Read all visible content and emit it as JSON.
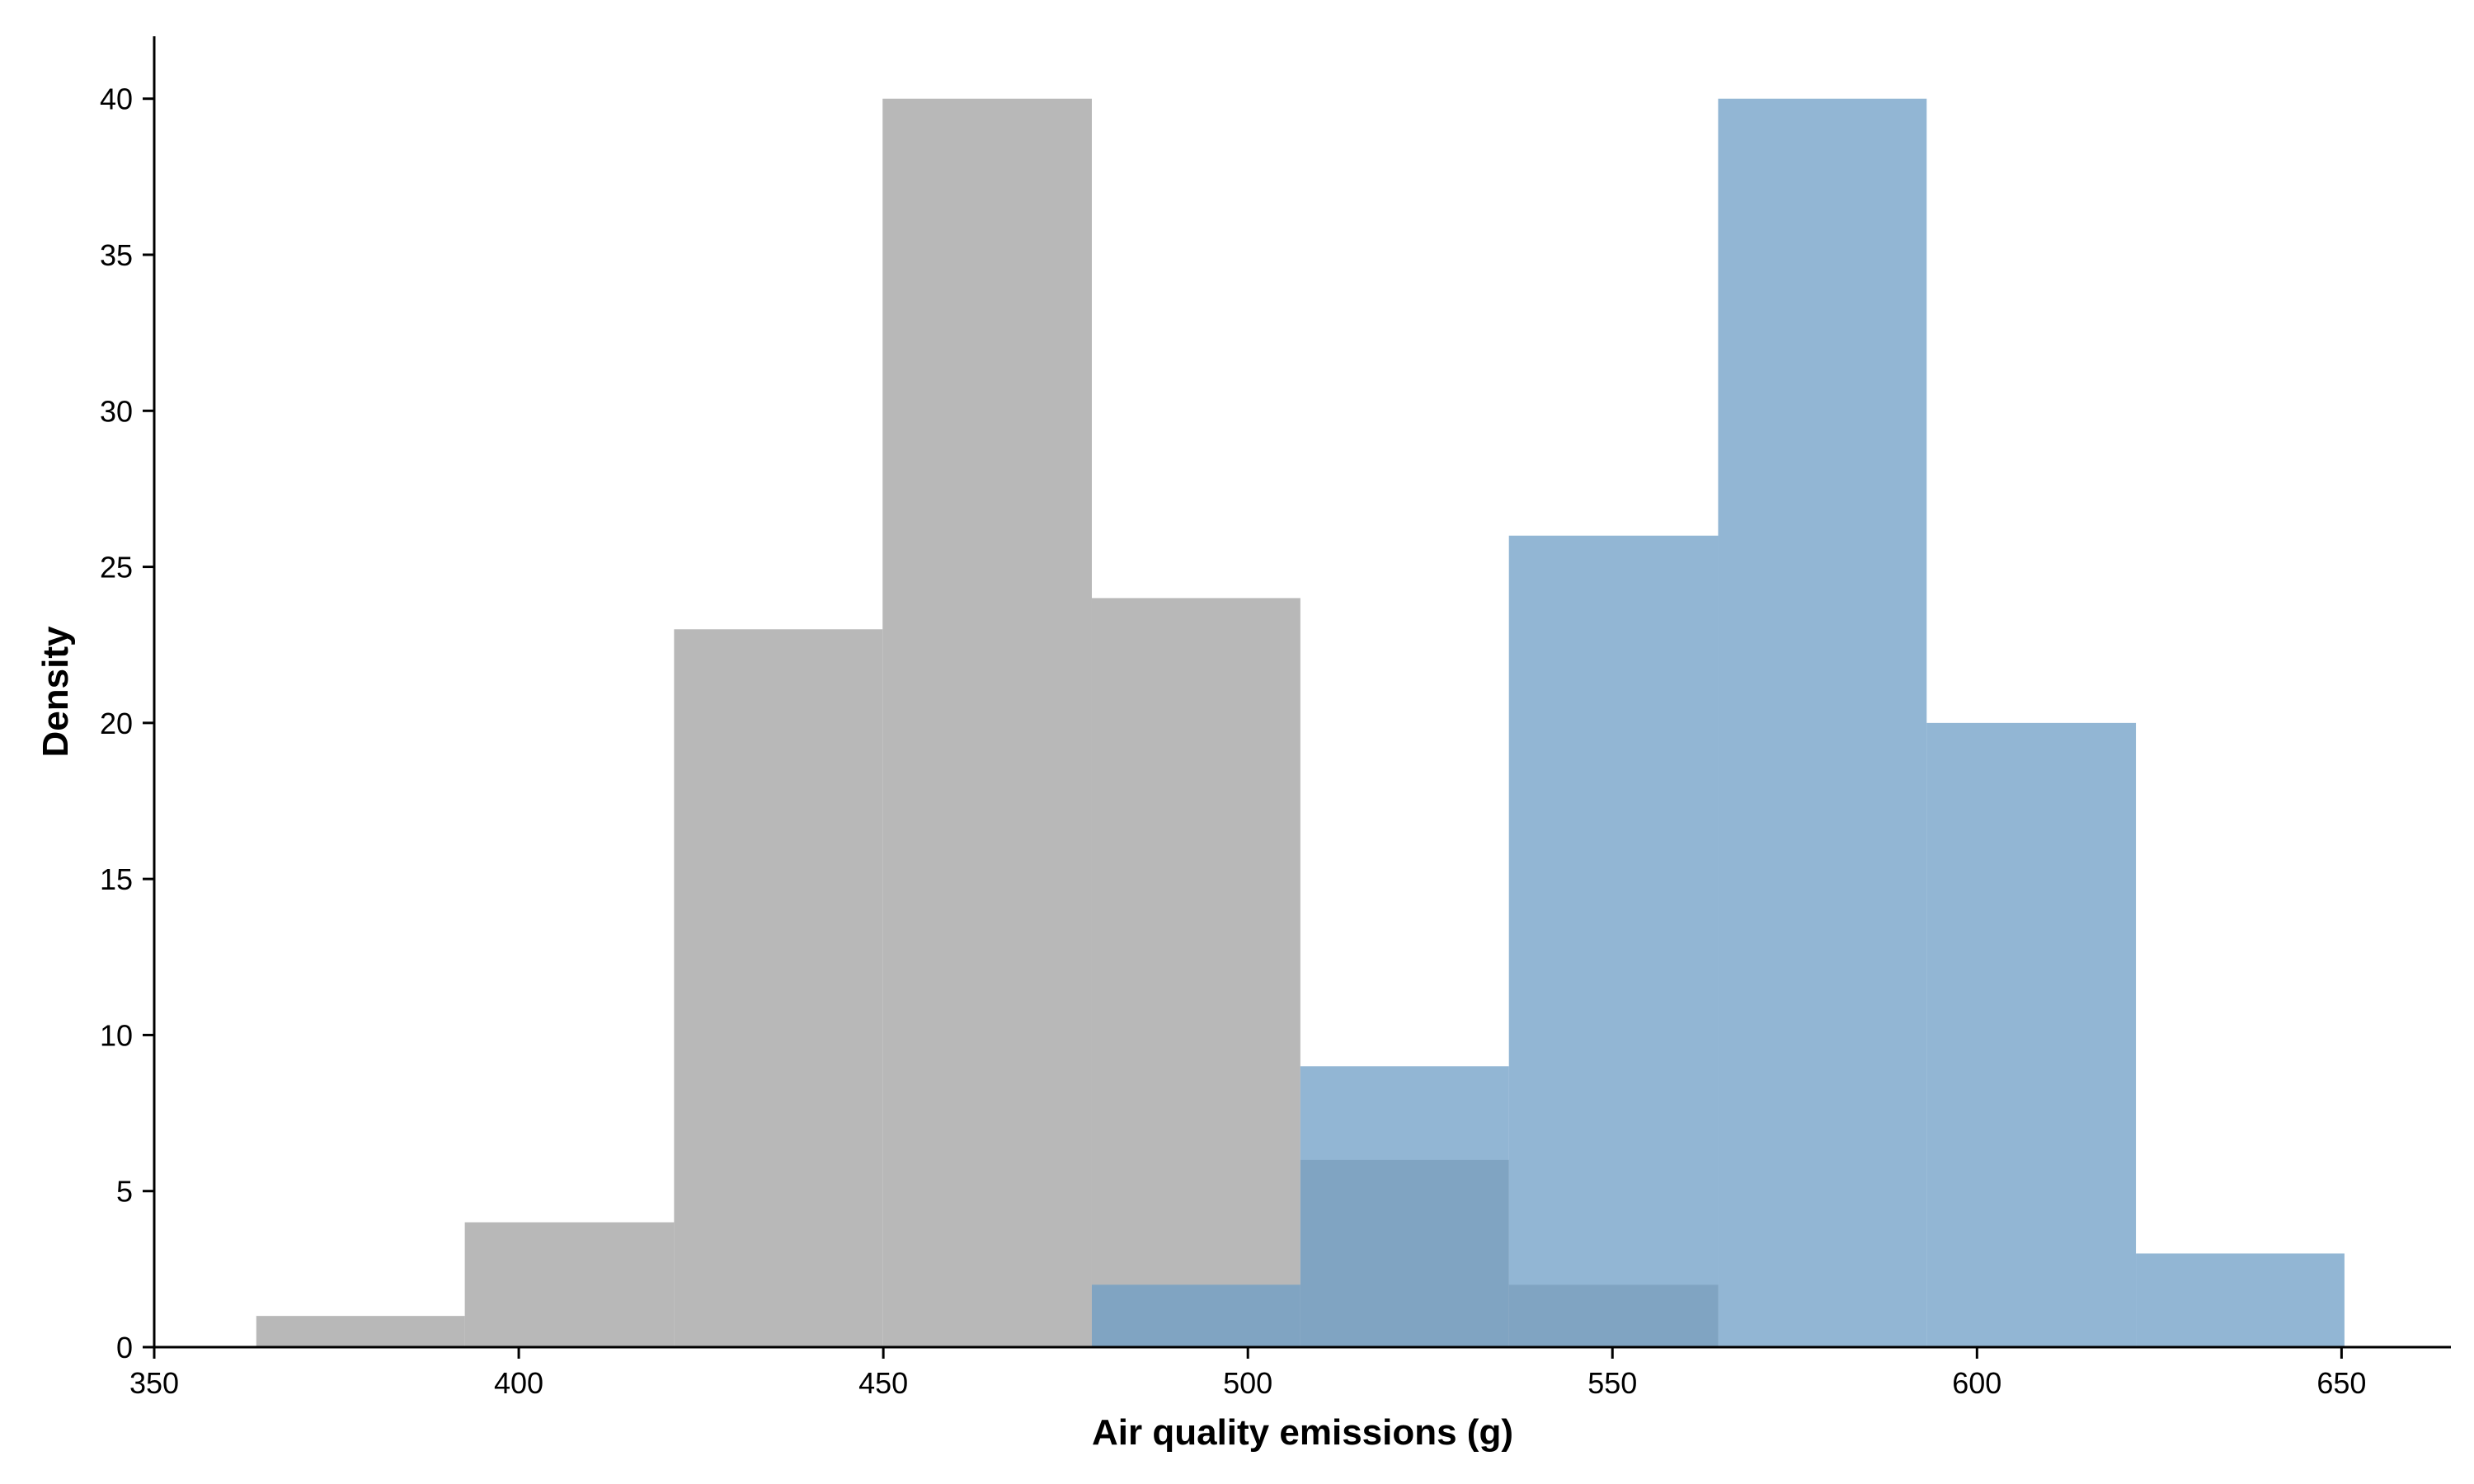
{
  "chart_data": {
    "type": "bar",
    "title": "",
    "xlabel": "Air quality emissions (g)",
    "ylabel": "Density",
    "xlim": [
      350,
      665
    ],
    "ylim": [
      0,
      42
    ],
    "grid": false,
    "legend": "none",
    "xticks": [
      350,
      400,
      450,
      500,
      550,
      600,
      650
    ],
    "yticks": [
      0,
      5,
      10,
      15,
      20,
      25,
      30,
      35,
      40
    ],
    "series": [
      {
        "color": "#b8b8b8",
        "bins": [
          {
            "x0": 364,
            "x1": 392.6,
            "value": 1
          },
          {
            "x0": 392.6,
            "x1": 421.3,
            "value": 4
          },
          {
            "x0": 421.3,
            "x1": 449.9,
            "value": 23
          },
          {
            "x0": 449.9,
            "x1": 478.6,
            "value": 40
          },
          {
            "x0": 478.6,
            "x1": 507.2,
            "value": 24
          },
          {
            "x0": 507.2,
            "x1": 535.8,
            "value": 6
          },
          {
            "x0": 535.8,
            "x1": 564.5,
            "value": 2
          }
        ]
      },
      {
        "color": "#6d9dc5",
        "bins": [
          {
            "x0": 478.6,
            "x1": 507.2,
            "value": 2
          },
          {
            "x0": 507.2,
            "x1": 535.8,
            "value": 9
          },
          {
            "x0": 535.8,
            "x1": 564.5,
            "value": 26
          },
          {
            "x0": 564.5,
            "x1": 593.1,
            "value": 40
          },
          {
            "x0": 593.1,
            "x1": 621.8,
            "value": 20
          },
          {
            "x0": 621.8,
            "x1": 650.4,
            "value": 3
          }
        ]
      }
    ]
  }
}
